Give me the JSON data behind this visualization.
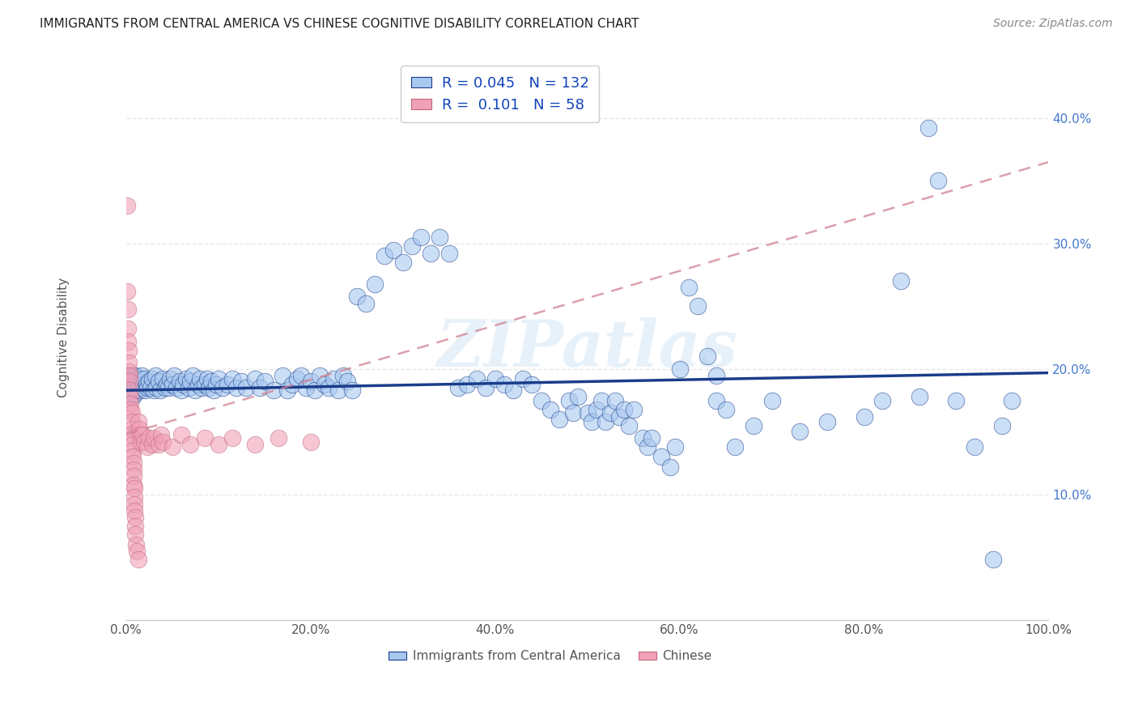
{
  "title": "IMMIGRANTS FROM CENTRAL AMERICA VS CHINESE COGNITIVE DISABILITY CORRELATION CHART",
  "source": "Source: ZipAtlas.com",
  "ylabel": "Cognitive Disability",
  "xlim": [
    0,
    1.0
  ],
  "ylim": [
    0,
    0.45
  ],
  "background_color": "#ffffff",
  "grid_color": "#e8e8e8",
  "watermark": "ZIPatlas",
  "legend_r_blue": "0.045",
  "legend_n_blue": "132",
  "legend_r_pink": "0.101",
  "legend_n_pink": "58",
  "blue_color": "#a8c8f0",
  "pink_color": "#f0a0b8",
  "blue_line_color": "#1a3d8a",
  "pink_line_color": "#d08090",
  "blue_trendline": [
    0.0,
    0.183,
    1.0,
    0.197
  ],
  "pink_trendline": [
    0.0,
    0.148,
    1.0,
    0.365
  ],
  "blue_scatter": [
    [
      0.001,
      0.19
    ],
    [
      0.001,
      0.185
    ],
    [
      0.001,
      0.195
    ],
    [
      0.001,
      0.188
    ],
    [
      0.002,
      0.192
    ],
    [
      0.002,
      0.183
    ],
    [
      0.002,
      0.188
    ],
    [
      0.002,
      0.185
    ],
    [
      0.003,
      0.19
    ],
    [
      0.003,
      0.185
    ],
    [
      0.003,
      0.192
    ],
    [
      0.003,
      0.183
    ],
    [
      0.004,
      0.188
    ],
    [
      0.004,
      0.195
    ],
    [
      0.004,
      0.182
    ],
    [
      0.004,
      0.19
    ],
    [
      0.005,
      0.185
    ],
    [
      0.005,
      0.192
    ],
    [
      0.005,
      0.183
    ],
    [
      0.005,
      0.188
    ],
    [
      0.006,
      0.195
    ],
    [
      0.006,
      0.18
    ],
    [
      0.006,
      0.192
    ],
    [
      0.006,
      0.188
    ],
    [
      0.007,
      0.183
    ],
    [
      0.007,
      0.19
    ],
    [
      0.007,
      0.185
    ],
    [
      0.007,
      0.178
    ],
    [
      0.008,
      0.195
    ],
    [
      0.008,
      0.185
    ],
    [
      0.008,
      0.188
    ],
    [
      0.008,
      0.182
    ],
    [
      0.009,
      0.18
    ],
    [
      0.009,
      0.193
    ],
    [
      0.009,
      0.185
    ],
    [
      0.009,
      0.19
    ],
    [
      0.01,
      0.188
    ],
    [
      0.01,
      0.183
    ],
    [
      0.01,
      0.195
    ],
    [
      0.01,
      0.185
    ],
    [
      0.011,
      0.192
    ],
    [
      0.012,
      0.183
    ],
    [
      0.013,
      0.188
    ],
    [
      0.013,
      0.19
    ],
    [
      0.014,
      0.185
    ],
    [
      0.015,
      0.192
    ],
    [
      0.016,
      0.183
    ],
    [
      0.017,
      0.195
    ],
    [
      0.018,
      0.185
    ],
    [
      0.019,
      0.188
    ],
    [
      0.02,
      0.192
    ],
    [
      0.021,
      0.183
    ],
    [
      0.022,
      0.188
    ],
    [
      0.023,
      0.185
    ],
    [
      0.025,
      0.19
    ],
    [
      0.027,
      0.185
    ],
    [
      0.028,
      0.192
    ],
    [
      0.03,
      0.183
    ],
    [
      0.032,
      0.195
    ],
    [
      0.033,
      0.185
    ],
    [
      0.035,
      0.19
    ],
    [
      0.037,
      0.183
    ],
    [
      0.04,
      0.192
    ],
    [
      0.042,
      0.185
    ],
    [
      0.044,
      0.188
    ],
    [
      0.046,
      0.185
    ],
    [
      0.048,
      0.192
    ],
    [
      0.05,
      0.188
    ],
    [
      0.052,
      0.195
    ],
    [
      0.055,
      0.185
    ],
    [
      0.058,
      0.19
    ],
    [
      0.06,
      0.183
    ],
    [
      0.062,
      0.188
    ],
    [
      0.065,
      0.192
    ],
    [
      0.068,
      0.185
    ],
    [
      0.07,
      0.19
    ],
    [
      0.072,
      0.195
    ],
    [
      0.075,
      0.183
    ],
    [
      0.078,
      0.188
    ],
    [
      0.08,
      0.192
    ],
    [
      0.082,
      0.185
    ],
    [
      0.085,
      0.188
    ],
    [
      0.088,
      0.192
    ],
    [
      0.09,
      0.185
    ],
    [
      0.092,
      0.19
    ],
    [
      0.095,
      0.183
    ],
    [
      0.098,
      0.188
    ],
    [
      0.1,
      0.192
    ],
    [
      0.105,
      0.185
    ],
    [
      0.11,
      0.188
    ],
    [
      0.115,
      0.192
    ],
    [
      0.12,
      0.185
    ],
    [
      0.125,
      0.19
    ],
    [
      0.13,
      0.185
    ],
    [
      0.14,
      0.192
    ],
    [
      0.145,
      0.185
    ],
    [
      0.15,
      0.19
    ],
    [
      0.16,
      0.183
    ],
    [
      0.17,
      0.195
    ],
    [
      0.175,
      0.183
    ],
    [
      0.18,
      0.188
    ],
    [
      0.185,
      0.192
    ],
    [
      0.19,
      0.195
    ],
    [
      0.195,
      0.185
    ],
    [
      0.2,
      0.19
    ],
    [
      0.205,
      0.183
    ],
    [
      0.21,
      0.195
    ],
    [
      0.215,
      0.188
    ],
    [
      0.22,
      0.185
    ],
    [
      0.225,
      0.192
    ],
    [
      0.23,
      0.183
    ],
    [
      0.235,
      0.195
    ],
    [
      0.24,
      0.19
    ],
    [
      0.245,
      0.183
    ],
    [
      0.25,
      0.258
    ],
    [
      0.26,
      0.252
    ],
    [
      0.27,
      0.268
    ],
    [
      0.28,
      0.29
    ],
    [
      0.29,
      0.295
    ],
    [
      0.3,
      0.285
    ],
    [
      0.31,
      0.298
    ],
    [
      0.32,
      0.305
    ],
    [
      0.33,
      0.292
    ],
    [
      0.34,
      0.305
    ],
    [
      0.35,
      0.292
    ],
    [
      0.36,
      0.185
    ],
    [
      0.37,
      0.188
    ],
    [
      0.38,
      0.192
    ],
    [
      0.39,
      0.185
    ],
    [
      0.4,
      0.192
    ],
    [
      0.41,
      0.188
    ],
    [
      0.42,
      0.183
    ],
    [
      0.43,
      0.192
    ],
    [
      0.44,
      0.188
    ],
    [
      0.45,
      0.175
    ],
    [
      0.46,
      0.168
    ],
    [
      0.47,
      0.16
    ],
    [
      0.48,
      0.175
    ],
    [
      0.485,
      0.165
    ],
    [
      0.49,
      0.178
    ],
    [
      0.5,
      0.165
    ],
    [
      0.505,
      0.158
    ],
    [
      0.51,
      0.168
    ],
    [
      0.515,
      0.175
    ],
    [
      0.52,
      0.158
    ],
    [
      0.525,
      0.165
    ],
    [
      0.53,
      0.175
    ],
    [
      0.535,
      0.162
    ],
    [
      0.54,
      0.168
    ],
    [
      0.545,
      0.155
    ],
    [
      0.55,
      0.168
    ],
    [
      0.56,
      0.145
    ],
    [
      0.565,
      0.138
    ],
    [
      0.57,
      0.145
    ],
    [
      0.58,
      0.13
    ],
    [
      0.59,
      0.122
    ],
    [
      0.595,
      0.138
    ],
    [
      0.6,
      0.2
    ],
    [
      0.61,
      0.265
    ],
    [
      0.62,
      0.25
    ],
    [
      0.63,
      0.21
    ],
    [
      0.64,
      0.195
    ],
    [
      0.64,
      0.175
    ],
    [
      0.65,
      0.168
    ],
    [
      0.66,
      0.138
    ],
    [
      0.68,
      0.155
    ],
    [
      0.7,
      0.175
    ],
    [
      0.73,
      0.15
    ],
    [
      0.76,
      0.158
    ],
    [
      0.8,
      0.162
    ],
    [
      0.82,
      0.175
    ],
    [
      0.84,
      0.27
    ],
    [
      0.86,
      0.178
    ],
    [
      0.87,
      0.392
    ],
    [
      0.88,
      0.35
    ],
    [
      0.9,
      0.175
    ],
    [
      0.92,
      0.138
    ],
    [
      0.94,
      0.048
    ],
    [
      0.95,
      0.155
    ],
    [
      0.96,
      0.175
    ]
  ],
  "pink_scatter": [
    [
      0.001,
      0.33
    ],
    [
      0.001,
      0.262
    ],
    [
      0.002,
      0.248
    ],
    [
      0.002,
      0.232
    ],
    [
      0.002,
      0.222
    ],
    [
      0.003,
      0.215
    ],
    [
      0.003,
      0.205
    ],
    [
      0.003,
      0.198
    ],
    [
      0.004,
      0.195
    ],
    [
      0.004,
      0.19
    ],
    [
      0.004,
      0.183
    ],
    [
      0.005,
      0.178
    ],
    [
      0.005,
      0.172
    ],
    [
      0.005,
      0.168
    ],
    [
      0.006,
      0.165
    ],
    [
      0.006,
      0.158
    ],
    [
      0.006,
      0.152
    ],
    [
      0.006,
      0.148
    ],
    [
      0.007,
      0.145
    ],
    [
      0.007,
      0.14
    ],
    [
      0.007,
      0.135
    ],
    [
      0.007,
      0.13
    ],
    [
      0.008,
      0.125
    ],
    [
      0.008,
      0.12
    ],
    [
      0.008,
      0.115
    ],
    [
      0.008,
      0.108
    ],
    [
      0.009,
      0.105
    ],
    [
      0.009,
      0.098
    ],
    [
      0.009,
      0.092
    ],
    [
      0.009,
      0.087
    ],
    [
      0.01,
      0.082
    ],
    [
      0.01,
      0.075
    ],
    [
      0.01,
      0.068
    ],
    [
      0.011,
      0.06
    ],
    [
      0.012,
      0.055
    ],
    [
      0.013,
      0.048
    ],
    [
      0.013,
      0.158
    ],
    [
      0.014,
      0.152
    ],
    [
      0.015,
      0.148
    ],
    [
      0.016,
      0.142
    ],
    [
      0.018,
      0.148
    ],
    [
      0.02,
      0.142
    ],
    [
      0.023,
      0.138
    ],
    [
      0.025,
      0.145
    ],
    [
      0.028,
      0.14
    ],
    [
      0.03,
      0.145
    ],
    [
      0.035,
      0.14
    ],
    [
      0.038,
      0.148
    ],
    [
      0.04,
      0.142
    ],
    [
      0.05,
      0.138
    ],
    [
      0.06,
      0.148
    ],
    [
      0.07,
      0.14
    ],
    [
      0.085,
      0.145
    ],
    [
      0.1,
      0.14
    ],
    [
      0.115,
      0.145
    ],
    [
      0.14,
      0.14
    ],
    [
      0.165,
      0.145
    ],
    [
      0.2,
      0.142
    ]
  ],
  "xtick_labels": [
    "0.0%",
    "20.0%",
    "40.0%",
    "60.0%",
    "80.0%",
    "100.0%"
  ],
  "xtick_vals": [
    0.0,
    0.2,
    0.4,
    0.6,
    0.8,
    1.0
  ],
  "ytick_labels": [
    "10.0%",
    "20.0%",
    "30.0%",
    "40.0%"
  ],
  "ytick_vals": [
    0.1,
    0.2,
    0.3,
    0.4
  ]
}
